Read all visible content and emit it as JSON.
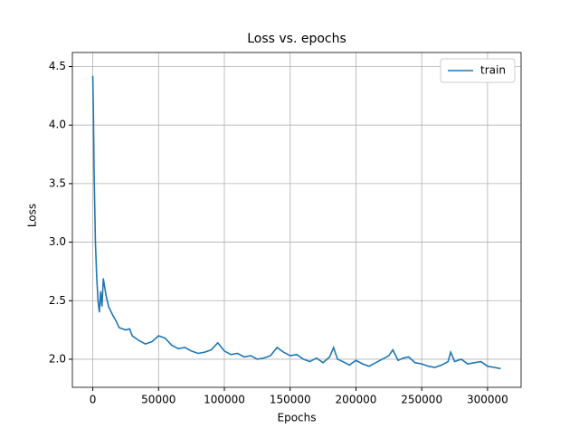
{
  "chart_data": {
    "type": "line",
    "title": "Loss vs. epochs",
    "xlabel": "Epochs",
    "ylabel": "Loss",
    "x": [
      0,
      500,
      1000,
      2000,
      3000,
      4000,
      5000,
      6000,
      7000,
      8000,
      9000,
      10000,
      12000,
      15000,
      18000,
      20000,
      25000,
      28000,
      30000,
      35000,
      40000,
      45000,
      50000,
      55000,
      60000,
      65000,
      70000,
      75000,
      80000,
      85000,
      90000,
      95000,
      100000,
      105000,
      110000,
      115000,
      120000,
      125000,
      130000,
      135000,
      140000,
      145000,
      150000,
      155000,
      160000,
      165000,
      170000,
      175000,
      180000,
      183000,
      186000,
      190000,
      195000,
      200000,
      205000,
      210000,
      215000,
      220000,
      225000,
      228000,
      232000,
      236000,
      240000,
      245000,
      250000,
      255000,
      260000,
      265000,
      270000,
      272000,
      275000,
      280000,
      285000,
      290000,
      295000,
      300000,
      305000,
      310000
    ],
    "series": [
      {
        "name": "train",
        "color": "#1f77b4",
        "values": [
          4.42,
          4.1,
          3.6,
          3.0,
          2.7,
          2.5,
          2.4,
          2.58,
          2.45,
          2.69,
          2.62,
          2.55,
          2.45,
          2.38,
          2.32,
          2.27,
          2.25,
          2.26,
          2.2,
          2.16,
          2.13,
          2.15,
          2.2,
          2.18,
          2.12,
          2.09,
          2.1,
          2.07,
          2.05,
          2.06,
          2.08,
          2.14,
          2.07,
          2.04,
          2.05,
          2.02,
          2.03,
          2.0,
          2.01,
          2.03,
          2.1,
          2.06,
          2.03,
          2.04,
          2.0,
          1.98,
          2.01,
          1.97,
          2.02,
          2.1,
          2.0,
          1.98,
          1.95,
          1.99,
          1.96,
          1.94,
          1.97,
          2.0,
          2.03,
          2.08,
          1.99,
          2.01,
          2.02,
          1.97,
          1.96,
          1.94,
          1.93,
          1.95,
          1.98,
          2.06,
          1.98,
          2.0,
          1.96,
          1.97,
          1.98,
          1.94,
          1.93,
          1.92
        ]
      }
    ],
    "xlim": [
      -15500,
      325500
    ],
    "ylim": [
      1.76,
      4.62
    ],
    "xticks": [
      0,
      50000,
      100000,
      150000,
      200000,
      250000,
      300000
    ],
    "yticks": [
      {
        "value": 2,
        "label": "2.0"
      },
      2.5,
      {
        "value": 3,
        "label": "3.0"
      },
      3.5,
      {
        "value": 4,
        "label": "4.0"
      },
      4.5
    ],
    "grid": true,
    "legend": "upper right"
  }
}
